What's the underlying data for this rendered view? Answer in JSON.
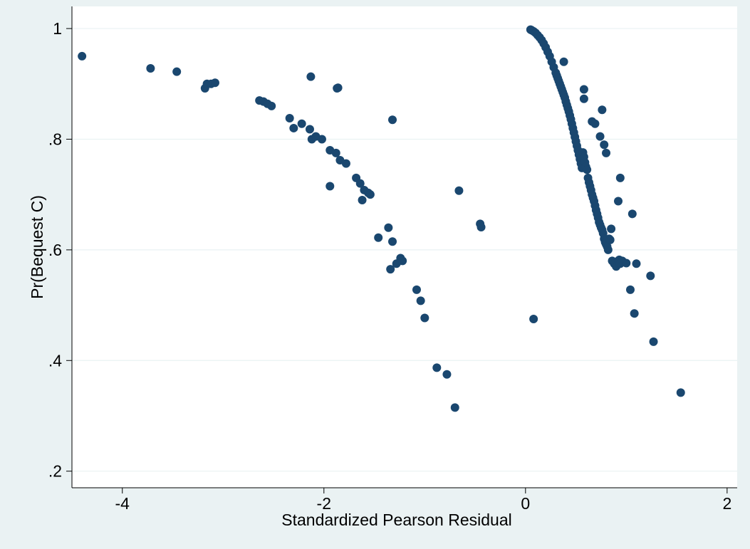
{
  "chart_data": {
    "type": "scatter",
    "title": "",
    "xlabel": "Standardized Pearson Residual",
    "ylabel": "Pr(Bequest C)",
    "xlim": [
      -4.5,
      2.1
    ],
    "ylim": [
      0.17,
      1.04
    ],
    "xticks": [
      -4,
      -2,
      0,
      2
    ],
    "xtick_labels": [
      "-4",
      "-2",
      "0",
      "2"
    ],
    "yticks": [
      0.2,
      0.4,
      0.6,
      0.8,
      1.0
    ],
    "ytick_labels": [
      ".2",
      ".4",
      ".6",
      ".8",
      "1"
    ],
    "grid": "horizontal",
    "legend": "none",
    "colors": {
      "marker": "#1a476f",
      "plot_bg": "#ffffff",
      "outer_bg": "#eaf2f3",
      "grid": "#eaf2f3"
    },
    "series": [
      {
        "x": [
          -4.4,
          -3.72,
          -3.46,
          -3.18,
          -3.16,
          -3.12,
          -3.08,
          -2.64,
          -2.6,
          -2.56,
          -2.52,
          -2.34,
          -2.3,
          -2.22,
          -2.14,
          -2.12,
          -2.08,
          -2.02,
          -1.94,
          -1.88,
          -1.84,
          -1.78,
          -1.68,
          -1.64,
          -1.62,
          -1.6,
          -1.56,
          -1.54,
          -1.46,
          -1.36,
          -1.34,
          -1.32,
          -1.28,
          -1.24,
          -1.22,
          -2.13,
          -1.86,
          -1.87,
          -1.32,
          -1.94,
          -1.08,
          -1.04,
          -1.0,
          -0.88,
          -0.78,
          -0.7,
          -0.66,
          -0.45,
          -0.44
        ],
        "y": [
          0.95,
          0.928,
          0.922,
          0.892,
          0.9,
          0.9,
          0.902,
          0.87,
          0.868,
          0.864,
          0.86,
          0.838,
          0.82,
          0.828,
          0.818,
          0.8,
          0.805,
          0.8,
          0.78,
          0.775,
          0.762,
          0.756,
          0.73,
          0.72,
          0.69,
          0.708,
          0.703,
          0.7,
          0.622,
          0.64,
          0.565,
          0.615,
          0.575,
          0.585,
          0.58,
          0.913,
          0.893,
          0.892,
          0.835,
          0.715,
          0.528,
          0.508,
          0.477,
          0.387,
          0.375,
          0.315,
          0.707,
          0.647,
          0.641
        ]
      },
      {
        "x": [
          0.05,
          0.06,
          0.08,
          0.1,
          0.12,
          0.14,
          0.16,
          0.18,
          0.2,
          0.22,
          0.24,
          0.26,
          0.28,
          0.3,
          0.31,
          0.32,
          0.33,
          0.34,
          0.35,
          0.36,
          0.37,
          0.38,
          0.39,
          0.4,
          0.41,
          0.42,
          0.43,
          0.44,
          0.45,
          0.46,
          0.47,
          0.48,
          0.49,
          0.5,
          0.51,
          0.52,
          0.53,
          0.54,
          0.55,
          0.56,
          0.57,
          0.58,
          0.59,
          0.6,
          0.61,
          0.62,
          0.63,
          0.64,
          0.65,
          0.66,
          0.67,
          0.68,
          0.69,
          0.7,
          0.71,
          0.72,
          0.73,
          0.74,
          0.75,
          0.76,
          0.77,
          0.78,
          0.79,
          0.8,
          0.81,
          0.82,
          0.83,
          0.84,
          0.86,
          0.88,
          0.9,
          0.92,
          0.93,
          0.94,
          0.96,
          1.0,
          1.04,
          1.08,
          1.1,
          1.24,
          1.27,
          1.54,
          0.08,
          0.38,
          0.58,
          0.58,
          0.66,
          0.69,
          0.76,
          0.74,
          0.78,
          0.8,
          0.85,
          0.92,
          0.94,
          1.06
        ],
        "y": [
          0.998,
          0.997,
          0.995,
          0.992,
          0.988,
          0.984,
          0.979,
          0.973,
          0.966,
          0.958,
          0.95,
          0.94,
          0.93,
          0.92,
          0.915,
          0.91,
          0.905,
          0.9,
          0.895,
          0.89,
          0.885,
          0.88,
          0.875,
          0.868,
          0.862,
          0.856,
          0.85,
          0.843,
          0.836,
          0.828,
          0.82,
          0.812,
          0.804,
          0.796,
          0.788,
          0.78,
          0.772,
          0.764,
          0.756,
          0.748,
          0.776,
          0.768,
          0.758,
          0.75,
          0.745,
          0.73,
          0.722,
          0.715,
          0.708,
          0.7,
          0.694,
          0.688,
          0.68,
          0.672,
          0.665,
          0.658,
          0.65,
          0.645,
          0.64,
          0.636,
          0.63,
          0.62,
          0.614,
          0.61,
          0.606,
          0.6,
          0.62,
          0.618,
          0.58,
          0.575,
          0.57,
          0.58,
          0.582,
          0.575,
          0.58,
          0.576,
          0.528,
          0.485,
          0.575,
          0.553,
          0.434,
          0.342,
          0.475,
          0.94,
          0.89,
          0.873,
          0.832,
          0.828,
          0.853,
          0.805,
          0.79,
          0.775,
          0.638,
          0.688,
          0.73,
          0.665
        ]
      }
    ]
  }
}
